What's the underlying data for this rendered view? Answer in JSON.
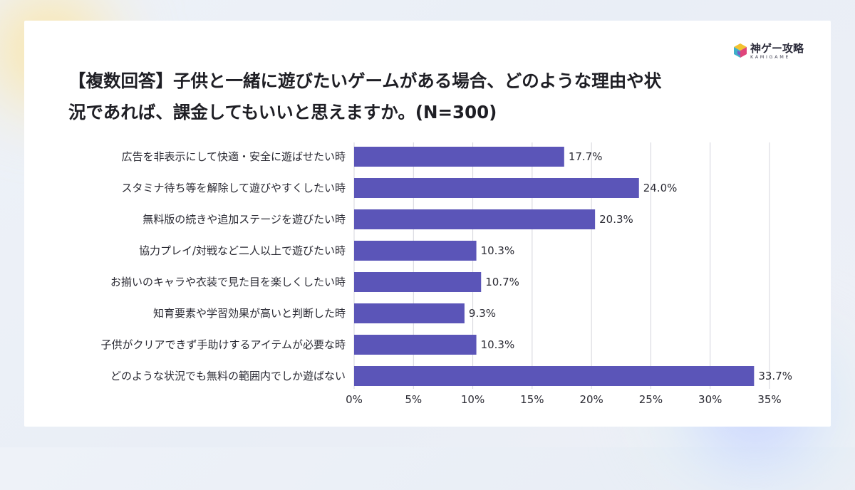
{
  "brand": {
    "name": "神ゲー攻略",
    "sub": "KAMIGAME"
  },
  "title_line1": "【複数回答】子供と一緒に遊びたいゲームがある場合、どのような理由や状",
  "title_line2": "況であれば、課金してもいいと思えますか。(N=300)",
  "colors": {
    "bar": "#5b55b8",
    "grid": "#d4d4dc",
    "text": "#2a2a33"
  },
  "chart_data": {
    "type": "bar",
    "orientation": "horizontal",
    "title": "【複数回答】子供と一緒に遊びたいゲームがある場合、どのような理由や状況であれば、課金してもいいと思えますか。(N=300)",
    "categories": [
      "広告を非表示にして快適・安全に遊ばせたい時",
      "スタミナ待ち等を解除して遊びやすくしたい時",
      "無料版の続きや追加ステージを遊びたい時",
      "協力プレイ/対戦など二人以上で遊びたい時",
      "お揃いのキャラや衣装で見た目を楽しくしたい時",
      "知育要素や学習効果が高いと判断した時",
      "子供がクリアできず手助けするアイテムが必要な時",
      "どのような状況でも無料の範囲内でしか遊ばない"
    ],
    "values": [
      17.7,
      24.0,
      20.3,
      10.3,
      10.7,
      9.3,
      10.3,
      33.7
    ],
    "value_labels": [
      "17.7%",
      "24.0%",
      "20.3%",
      "10.3%",
      "10.7%",
      "9.3%",
      "10.3%",
      "33.7%"
    ],
    "xlim": [
      0,
      35
    ],
    "xticks": [
      0,
      5,
      10,
      15,
      20,
      25,
      30,
      35
    ],
    "xtick_labels": [
      "0%",
      "5%",
      "10%",
      "15%",
      "20%",
      "25%",
      "30%",
      "35%"
    ],
    "grid": true,
    "legend": "none"
  }
}
